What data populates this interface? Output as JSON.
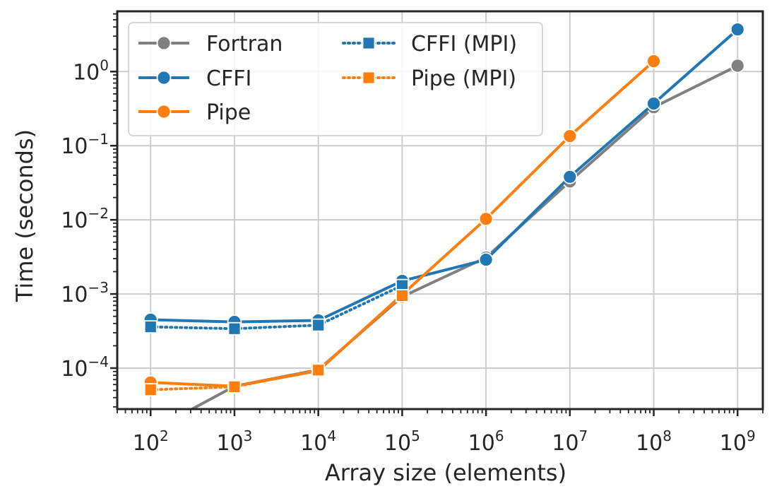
{
  "chart_data": {
    "type": "line",
    "xlabel": "Array size (elements)",
    "ylabel": "Time (seconds)",
    "x_scale": "log",
    "y_scale": "log",
    "xlim": [
      40,
      2000000000
    ],
    "ylim": [
      2.8e-05,
      6.5
    ],
    "x_ticks": [
      {
        "base": "10",
        "exp": "2",
        "value": 100
      },
      {
        "base": "10",
        "exp": "3",
        "value": 1000
      },
      {
        "base": "10",
        "exp": "4",
        "value": 10000
      },
      {
        "base": "10",
        "exp": "5",
        "value": 100000
      },
      {
        "base": "10",
        "exp": "6",
        "value": 1000000
      },
      {
        "base": "10",
        "exp": "7",
        "value": 10000000
      },
      {
        "base": "10",
        "exp": "8",
        "value": 100000000
      },
      {
        "base": "10",
        "exp": "9",
        "value": 1000000000
      }
    ],
    "y_ticks": [
      {
        "base": "10",
        "exp": "−4",
        "value": 0.0001
      },
      {
        "base": "10",
        "exp": "−3",
        "value": 0.001
      },
      {
        "base": "10",
        "exp": "−2",
        "value": 0.01
      },
      {
        "base": "10",
        "exp": "−1",
        "value": 0.1
      },
      {
        "base": "10",
        "exp": "0",
        "value": 1
      }
    ],
    "grid": true,
    "legend": {
      "position": "top-left",
      "columns": 2
    },
    "series": [
      {
        "name": "Fortran",
        "color": "#808080",
        "style": "solid",
        "marker": "circle",
        "x": [
          100,
          1000,
          10000,
          100000,
          1000000,
          10000000,
          100000000,
          1000000000
        ],
        "y": [
          1.4e-05,
          5.7e-05,
          9.5e-05,
          0.00092,
          0.0031,
          0.033,
          0.33,
          1.2
        ]
      },
      {
        "name": "CFFI",
        "color": "#1f77b4",
        "style": "solid",
        "marker": "circle",
        "x": [
          100,
          1000,
          10000,
          100000,
          1000000,
          10000000,
          100000000,
          1000000000
        ],
        "y": [
          0.00045,
          0.00042,
          0.00044,
          0.0015,
          0.0029,
          0.038,
          0.37,
          3.7
        ]
      },
      {
        "name": "Pipe",
        "color": "#ff7f0e",
        "style": "solid",
        "marker": "circle",
        "x": [
          100,
          1000,
          10000,
          100000,
          1000000,
          10000000,
          100000000
        ],
        "y": [
          6.4e-05,
          5.7e-05,
          9.2e-05,
          0.00098,
          0.0103,
          0.135,
          1.38
        ]
      },
      {
        "name": "CFFI (MPI)",
        "color": "#1f77b4",
        "style": "dotted",
        "marker": "square",
        "x": [
          100,
          1000,
          10000,
          100000
        ],
        "y": [
          0.00036,
          0.00034,
          0.00038,
          0.0013
        ]
      },
      {
        "name": "Pipe (MPI)",
        "color": "#ff7f0e",
        "style": "dotted",
        "marker": "square",
        "x": [
          100,
          1000,
          10000,
          100000
        ],
        "y": [
          5.1e-05,
          5.6e-05,
          9.4e-05,
          0.00095
        ]
      }
    ]
  }
}
